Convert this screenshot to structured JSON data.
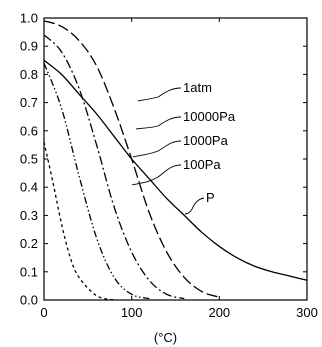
{
  "chart_data": {
    "type": "line",
    "title": "",
    "xlabel": "(°C)",
    "ylabel": "",
    "xlim": [
      0,
      300
    ],
    "ylim": [
      0,
      1.0
    ],
    "xticks": [
      0,
      100,
      200,
      300
    ],
    "yticks": [
      0.0,
      0.1,
      0.2,
      0.3,
      0.4,
      0.5,
      0.6,
      0.7,
      0.8,
      0.9,
      1.0
    ],
    "ytick_labels": [
      "0.0",
      "0.1",
      "0.2",
      "0.3",
      "0.4",
      "0.5",
      "0.6",
      "0.7",
      "0.8",
      "0.9",
      "1.0"
    ],
    "grid": false,
    "series": [
      {
        "name": "1atm",
        "line_style": "long-dash",
        "x": [
          0,
          20,
          40,
          60,
          80,
          100,
          120,
          140,
          160,
          180,
          200
        ],
        "y": [
          0.99,
          0.97,
          0.92,
          0.83,
          0.68,
          0.5,
          0.31,
          0.17,
          0.08,
          0.03,
          0.01
        ]
      },
      {
        "name": "10000Pa",
        "line_style": "dash-dot",
        "x": [
          0,
          20,
          40,
          60,
          80,
          100,
          120,
          140,
          160
        ],
        "y": [
          0.94,
          0.88,
          0.75,
          0.55,
          0.33,
          0.17,
          0.07,
          0.02,
          0.005
        ]
      },
      {
        "name": "1000Pa",
        "line_style": "dash-dot-dot",
        "x": [
          0,
          20,
          40,
          60,
          80,
          100,
          120
        ],
        "y": [
          0.84,
          0.68,
          0.44,
          0.22,
          0.08,
          0.02,
          0.005
        ]
      },
      {
        "name": "100Pa",
        "line_style": "short-dash",
        "x": [
          0,
          10,
          20,
          30,
          40,
          60,
          80
        ],
        "y": [
          0.56,
          0.42,
          0.27,
          0.15,
          0.08,
          0.015,
          0.0
        ]
      },
      {
        "name": "P",
        "line_style": "solid",
        "x": [
          0,
          20,
          40,
          60,
          80,
          100,
          120,
          140,
          160,
          180,
          200,
          220,
          240,
          260,
          280,
          300
        ],
        "y": [
          0.85,
          0.8,
          0.73,
          0.66,
          0.58,
          0.5,
          0.43,
          0.36,
          0.3,
          0.24,
          0.19,
          0.15,
          0.12,
          0.1,
          0.085,
          0.07
        ]
      }
    ]
  }
}
